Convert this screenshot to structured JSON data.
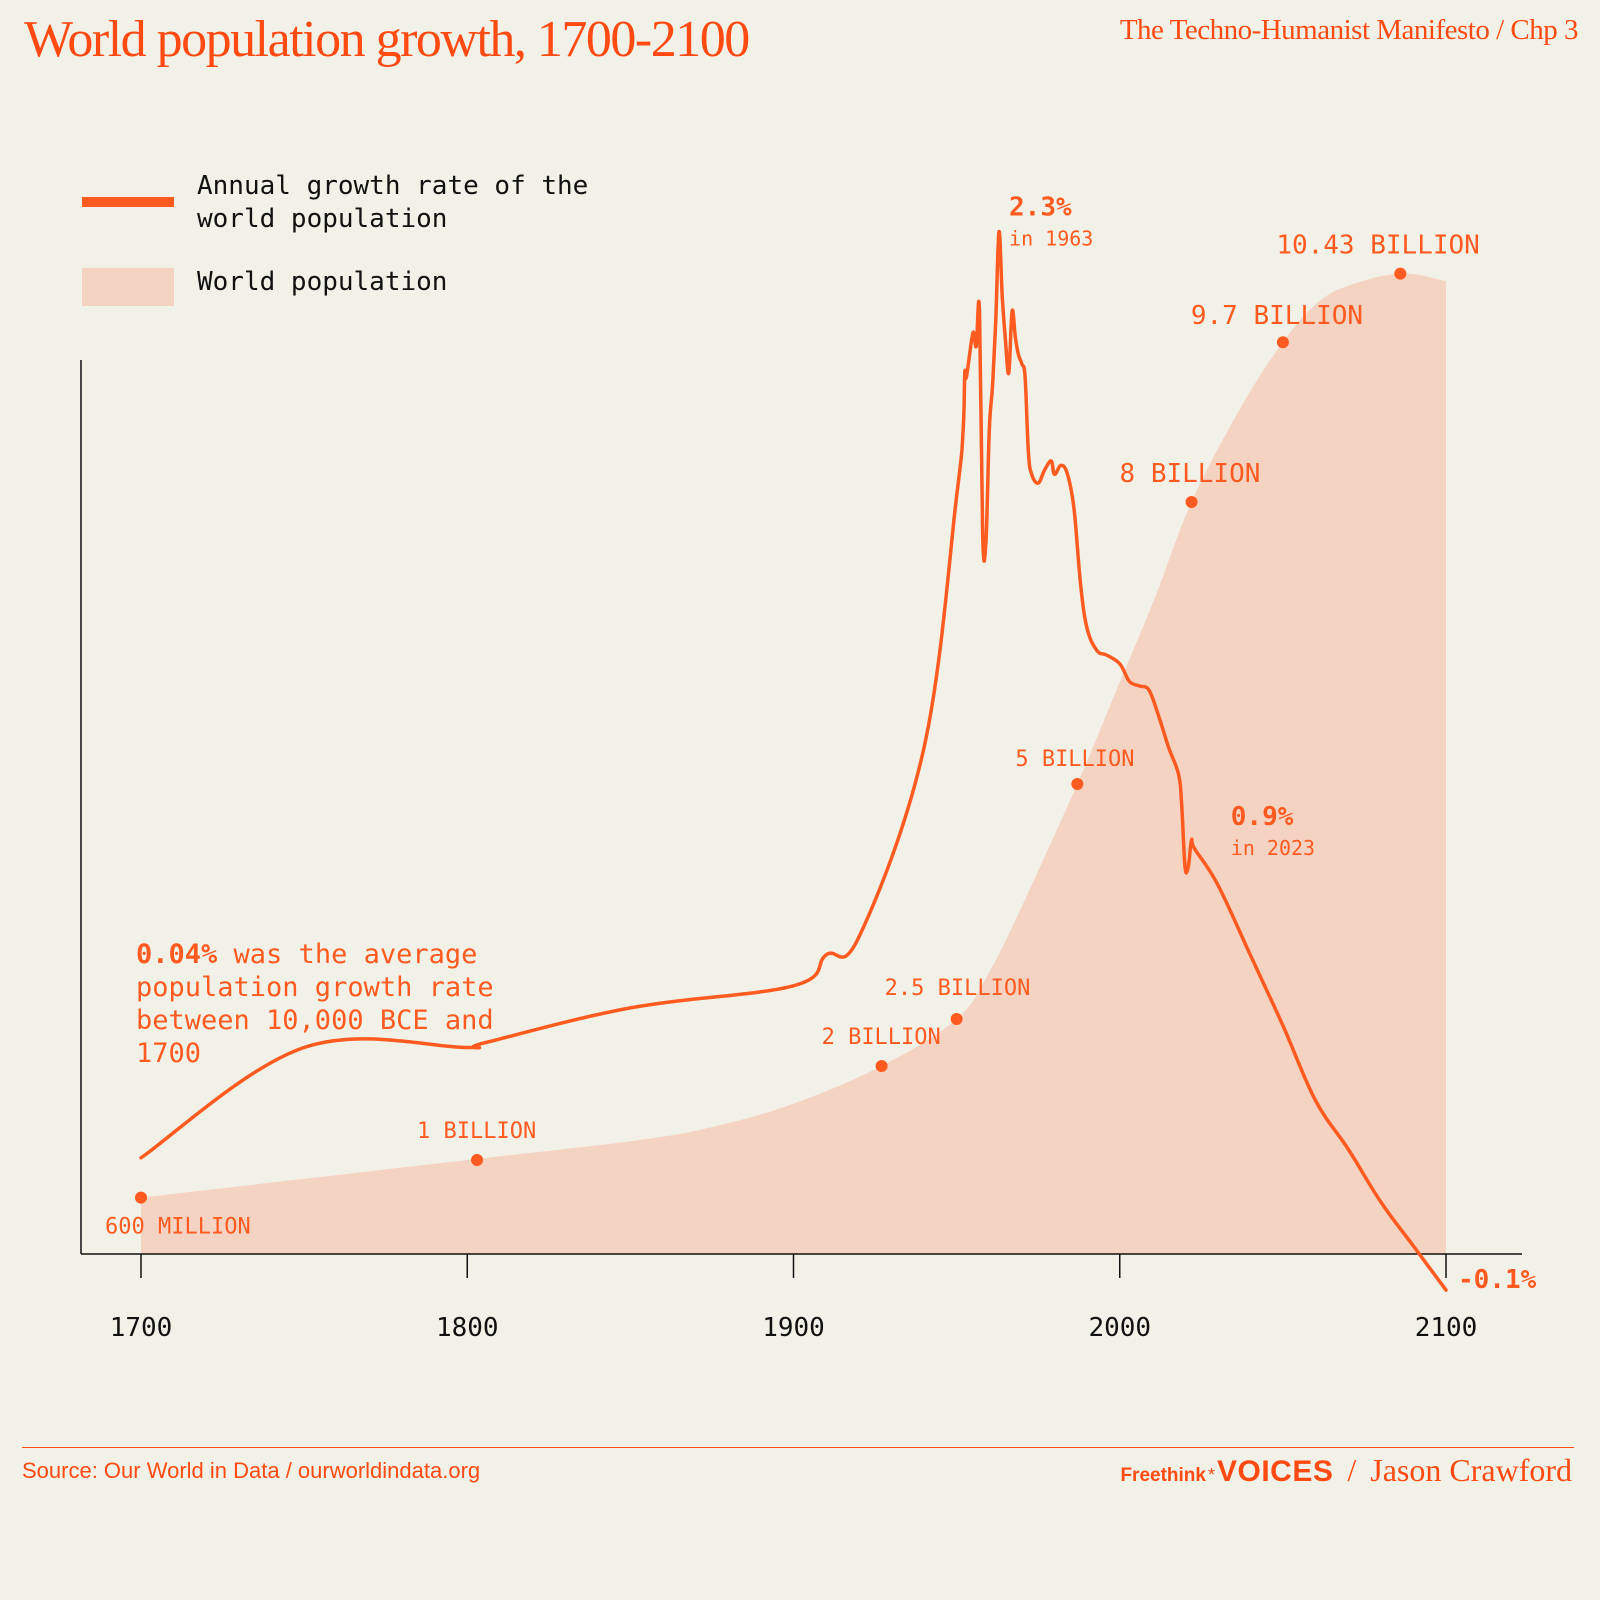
{
  "header": {
    "title": "World population growth, 1700-2100",
    "subtitle": "The Techno-Humanist Manifesto / Chp 3"
  },
  "legend": {
    "growth_label": "Annual growth rate of the world population",
    "population_label": "World population"
  },
  "note": {
    "highlight": "0.04%",
    "text": " was the average population growth rate between 10,000 BCE and 1700"
  },
  "footer": {
    "source": "Source: Our World in Data / ourworldindata.org",
    "brand_prefix": "Freethink",
    "brand_asterisk": "*",
    "brand_name": "VOICES",
    "separator": "/",
    "author": "Jason Crawford"
  },
  "colors": {
    "background": "#f2f1e8",
    "accent": "#ff5a1f",
    "area_fill": "#f5d3c2",
    "axis": "#111111"
  },
  "chart_data": {
    "type": "line+area",
    "title": "World population growth, 1700-2100",
    "xlabel": "",
    "ylabel": "",
    "xlim": [
      1700,
      2100
    ],
    "x_ticks": [
      1700,
      1800,
      1900,
      2000,
      2100
    ],
    "x_tick_labels": [
      "1700",
      "1800",
      "1900",
      "2000",
      "2100"
    ],
    "grid": false,
    "legend_position": "top-left",
    "series": [
      {
        "name": "Annual growth rate of the world population",
        "type": "line",
        "unit": "%",
        "points": [
          [
            1700,
            0.2
          ],
          [
            1750,
            0.45
          ],
          [
            1800,
            0.45
          ],
          [
            1805,
            0.46
          ],
          [
            1850,
            0.54
          ],
          [
            1900,
            0.59
          ],
          [
            1910,
            0.66
          ],
          [
            1920,
            0.7
          ],
          [
            1940,
            1.13
          ],
          [
            1950,
            1.7
          ],
          [
            1952,
            1.85
          ],
          [
            1952.5,
            1.98
          ],
          [
            1953,
            1.97
          ],
          [
            1955,
            2.07
          ],
          [
            1956,
            2.04
          ],
          [
            1957,
            2.12
          ],
          [
            1958,
            1.61
          ],
          [
            1959,
            1.6
          ],
          [
            1960,
            1.85
          ],
          [
            1961,
            1.95
          ],
          [
            1962,
            2.1
          ],
          [
            1963,
            2.3
          ],
          [
            1964,
            2.15
          ],
          [
            1965,
            2.05
          ],
          [
            1966,
            1.98
          ],
          [
            1967,
            2.12
          ],
          [
            1968,
            2.06
          ],
          [
            1969,
            2.02
          ],
          [
            1970,
            2.0
          ],
          [
            1971,
            1.97
          ],
          [
            1972,
            1.8
          ],
          [
            1973,
            1.75
          ],
          [
            1975,
            1.73
          ],
          [
            1977,
            1.76
          ],
          [
            1979,
            1.78
          ],
          [
            1980,
            1.75
          ],
          [
            1982,
            1.77
          ],
          [
            1984,
            1.75
          ],
          [
            1986,
            1.67
          ],
          [
            1988,
            1.5
          ],
          [
            1990,
            1.4
          ],
          [
            1993,
            1.35
          ],
          [
            1996,
            1.34
          ],
          [
            2000,
            1.32
          ],
          [
            2003,
            1.28
          ],
          [
            2006,
            1.27
          ],
          [
            2009,
            1.26
          ],
          [
            2012,
            1.2
          ],
          [
            2015,
            1.13
          ],
          [
            2018,
            1.07
          ],
          [
            2019,
            1.0
          ],
          [
            2020,
            0.86
          ],
          [
            2021,
            0.86
          ],
          [
            2022,
            0.92
          ],
          [
            2023,
            0.9
          ],
          [
            2030,
            0.82
          ],
          [
            2040,
            0.66
          ],
          [
            2050,
            0.5
          ],
          [
            2060,
            0.33
          ],
          [
            2070,
            0.22
          ],
          [
            2080,
            0.1
          ],
          [
            2090,
            0.0
          ],
          [
            2100,
            -0.1
          ]
        ]
      },
      {
        "name": "World population",
        "type": "area",
        "unit": "billion",
        "points": [
          [
            1700,
            0.6
          ],
          [
            1750,
            0.8
          ],
          [
            1800,
            1.0
          ],
          [
            1850,
            1.2
          ],
          [
            1875,
            1.35
          ],
          [
            1900,
            1.6
          ],
          [
            1927,
            2.0
          ],
          [
            1950,
            2.5
          ],
          [
            1960,
            3.0
          ],
          [
            1970,
            3.7
          ],
          [
            1987,
            5.0
          ],
          [
            1999,
            6.0
          ],
          [
            2011,
            7.0
          ],
          [
            2022,
            8.0
          ],
          [
            2037,
            9.0
          ],
          [
            2050,
            9.7
          ],
          [
            2060,
            10.1
          ],
          [
            2070,
            10.3
          ],
          [
            2086,
            10.43
          ],
          [
            2100,
            10.35
          ]
        ]
      }
    ],
    "annotations": [
      {
        "series": "growth",
        "label": "2.3%",
        "sublabel": "in 1963",
        "x": 1963,
        "y": 2.3
      },
      {
        "series": "growth",
        "label": "0.9%",
        "sublabel": "in 2023",
        "x": 2023,
        "y": 0.9
      },
      {
        "series": "growth",
        "label": "-0.1%",
        "x": 2100,
        "y": -0.1
      },
      {
        "series": "population",
        "label": "600 MILLION",
        "x": 1700,
        "y": 0.6
      },
      {
        "series": "population",
        "label": "1 BILLION",
        "x": 1803,
        "y": 1.0
      },
      {
        "series": "population",
        "label": "2 BILLION",
        "x": 1927,
        "y": 2.0
      },
      {
        "series": "population",
        "label": "2.5 BILLION",
        "x": 1950,
        "y": 2.5
      },
      {
        "series": "population",
        "label": "5 BILLION",
        "x": 1987,
        "y": 5.0
      },
      {
        "series": "population",
        "label": "8 BILLION",
        "x": 2022,
        "y": 8.0
      },
      {
        "series": "population",
        "label": "9.7 BILLION",
        "x": 2050,
        "y": 9.7
      },
      {
        "series": "population",
        "label": "10.43 BILLION",
        "x": 2086,
        "y": 10.43
      }
    ]
  }
}
